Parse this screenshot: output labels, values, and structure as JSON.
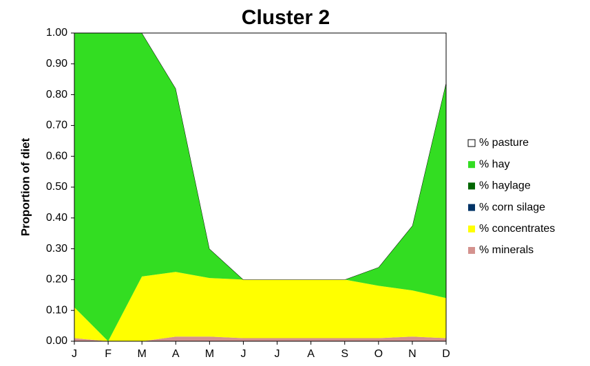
{
  "chart_data": {
    "type": "stacked_area",
    "title": "Cluster 2",
    "ylabel": "Proportion of diet",
    "categories": [
      "J",
      "F",
      "M",
      "A",
      "M",
      "J",
      "J",
      "A",
      "S",
      "O",
      "N",
      "D"
    ],
    "series": [
      {
        "name": "% pasture",
        "color": "#ffffff",
        "values": [
          0,
          0,
          0,
          0.18,
          0.7,
          0.8,
          0.8,
          0.8,
          0.8,
          0.76,
          0.625,
          0.16
        ]
      },
      {
        "name": "% hay",
        "color": "#33dd22",
        "values": [
          0.89,
          1.0,
          0.79,
          0.595,
          0.095,
          0,
          0,
          0,
          0,
          0.06,
          0.21,
          0.7
        ]
      },
      {
        "name": "% haylage",
        "color": "#006600",
        "values": [
          0,
          0,
          0,
          0,
          0,
          0,
          0,
          0,
          0,
          0,
          0,
          0
        ]
      },
      {
        "name": "% corn silage",
        "color": "#003366",
        "values": [
          0,
          0,
          0,
          0,
          0,
          0,
          0,
          0,
          0,
          0,
          0,
          0
        ]
      },
      {
        "name": "% concentrates",
        "color": "#ffff00",
        "values": [
          0.1,
          0,
          0.21,
          0.21,
          0.19,
          0.19,
          0.19,
          0.19,
          0.19,
          0.17,
          0.15,
          0.13
        ]
      },
      {
        "name": "% minerals",
        "color": "#d4928e",
        "values": [
          0.01,
          0,
          0,
          0.015,
          0.015,
          0.01,
          0.01,
          0.01,
          0.01,
          0.01,
          0.015,
          0.01
        ]
      }
    ],
    "ylim": [
      0,
      1
    ],
    "yticks": [
      {
        "value": 0,
        "label": "0.00"
      },
      {
        "value": 0.1,
        "label": "0.10"
      },
      {
        "value": 0.2,
        "label": "0.20"
      },
      {
        "value": 0.3,
        "label": "0.30"
      },
      {
        "value": 0.4,
        "label": "0.40"
      },
      {
        "value": 0.5,
        "label": "0.50"
      },
      {
        "value": 0.6,
        "label": "0.60"
      },
      {
        "value": 0.7,
        "label": "0.70"
      },
      {
        "value": 0.8,
        "label": "0.80"
      },
      {
        "value": 0.9,
        "label": "0.90"
      },
      {
        "value": 1,
        "label": "1.00"
      }
    ],
    "legend": "right"
  }
}
